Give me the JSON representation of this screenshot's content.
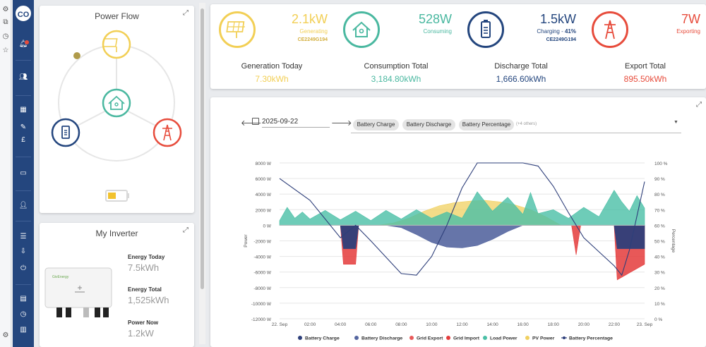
{
  "sidebar": {
    "avatar_initials": "CO"
  },
  "power_flow": {
    "title": "Power Flow"
  },
  "inverter": {
    "title": "My Inverter",
    "brand": "GivEnergy",
    "energy_today_label": "Energy Today",
    "energy_today_value": "7.5kWh",
    "energy_total_label": "Energy Total",
    "energy_total_value": "1,525kWh",
    "power_now_label": "Power Now",
    "power_now_value": "1.2kW"
  },
  "stats": {
    "generation": {
      "value": "2.1kW",
      "label": "Generating",
      "id": "CE2249G194",
      "color": "#f2cf55"
    },
    "consumption": {
      "value": "528W",
      "label": "Consuming",
      "color": "#4ab8a0"
    },
    "battery": {
      "value": "1.5kW",
      "label": "Charging - ",
      "percent": "41%",
      "id": "CE2249G194",
      "color": "#24467e"
    },
    "export": {
      "value": "7W",
      "label": "Exporting",
      "color": "#e74c3c"
    }
  },
  "totals": {
    "generation_label": "Generation Today",
    "generation_value": "7.30kWh",
    "consumption_label": "Consumption Total",
    "consumption_value": "3,184.80kWh",
    "discharge_label": "Discharge Total",
    "discharge_value": "1,666.60kWh",
    "export_label": "Export Total",
    "export_value": "895.50kWh"
  },
  "chart_controls": {
    "date": "2025-09-22",
    "chips": [
      "Battery Charge",
      "Battery Discharge",
      "Battery Percentage"
    ],
    "more": "(+4 others)"
  },
  "chart_data": {
    "type": "area",
    "x_ticks": [
      "22. Sep",
      "02:00",
      "04:00",
      "06:00",
      "08:00",
      "10:00",
      "12:00",
      "14:00",
      "16:00",
      "18:00",
      "20:00",
      "22:00",
      "23. Sep"
    ],
    "y_left_ticks": [
      "8000 W",
      "6000 W",
      "4000 W",
      "2000 W",
      "0 W",
      "-2000 W",
      "-4000 W",
      "-6000 W",
      "-8000 W",
      "-10000 W",
      "-12000 W"
    ],
    "y_right_ticks": [
      "100 %",
      "90 %",
      "80 %",
      "70 %",
      "60 %",
      "50 %",
      "40 %",
      "30 %",
      "20 %",
      "10 %",
      "0 %"
    ],
    "ylabel_left": "Power",
    "ylabel_right": "Percentage",
    "ylim_left": [
      -12000,
      8000
    ],
    "ylim_right": [
      0,
      100
    ],
    "x_hours": [
      0,
      24
    ],
    "legend": [
      {
        "name": "Battery Charge",
        "color": "#2e3f7a"
      },
      {
        "name": "Battery Discharge",
        "color": "#5566a0"
      },
      {
        "name": "Grid Export",
        "color": "#e85a5a"
      },
      {
        "name": "Grid Import",
        "color": "#e43b3b"
      },
      {
        "name": "Load Power",
        "color": "#4abfa6"
      },
      {
        "name": "PV Power",
        "color": "#f0d060"
      },
      {
        "name": "Battery Percentage",
        "color": "#2e3f7a"
      }
    ],
    "series": {
      "pv_power": {
        "x": [
          6.5,
          7.5,
          8.5,
          9.5,
          10.5,
          11.5,
          12.5,
          13.5,
          14.5,
          15.5,
          16.5,
          17.5,
          18.5
        ],
        "y": [
          0,
          300,
          900,
          1800,
          2500,
          2900,
          3100,
          3200,
          3000,
          2600,
          2000,
          1100,
          0
        ]
      },
      "load_power": {
        "x": [
          0,
          0.5,
          1,
          1.5,
          2,
          3,
          4,
          5,
          6,
          7,
          8,
          9,
          10,
          11,
          12,
          13,
          14,
          15,
          16,
          16.5,
          17,
          18,
          19,
          20,
          21,
          22,
          22.5,
          23,
          23.5,
          24
        ],
        "y": [
          600,
          2300,
          900,
          1700,
          800,
          1900,
          700,
          1800,
          600,
          1900,
          800,
          2000,
          900,
          1700,
          900,
          4300,
          1800,
          3600,
          1400,
          4200,
          1500,
          2000,
          900,
          2300,
          1100,
          4500,
          3000,
          1800,
          3800,
          2200
        ]
      },
      "battery_discharge": {
        "x": [
          7,
          8,
          9,
          10,
          11,
          12,
          13,
          14,
          15,
          16
        ],
        "y": [
          0,
          -300,
          -1200,
          -2200,
          -2800,
          -2900,
          -2600,
          -1800,
          -800,
          0
        ]
      },
      "battery_charge": {
        "x": [
          4,
          4.2,
          5,
          5.2,
          22,
          22.2,
          24
        ],
        "y": [
          0,
          -3000,
          -3000,
          0,
          0,
          -3000,
          -3000
        ]
      },
      "grid_import": {
        "x": [
          4,
          4.2,
          5,
          5.2,
          19.2,
          19.5,
          19.8,
          22,
          22.2,
          24
        ],
        "y": [
          0,
          -5000,
          -5000,
          0,
          0,
          -3800,
          0,
          0,
          -7000,
          -5000
        ]
      },
      "battery_percentage": {
        "x": [
          0,
          2,
          4,
          5,
          6,
          8,
          9,
          10,
          11,
          12,
          13,
          14,
          15,
          16,
          17,
          18,
          19,
          20,
          21,
          22,
          22.5,
          23,
          24
        ],
        "y": [
          90,
          76,
          52,
          60,
          50,
          29,
          28,
          40,
          60,
          84,
          100,
          100,
          100,
          100,
          98,
          85,
          68,
          52,
          43,
          34,
          28,
          44,
          88
        ]
      }
    }
  }
}
